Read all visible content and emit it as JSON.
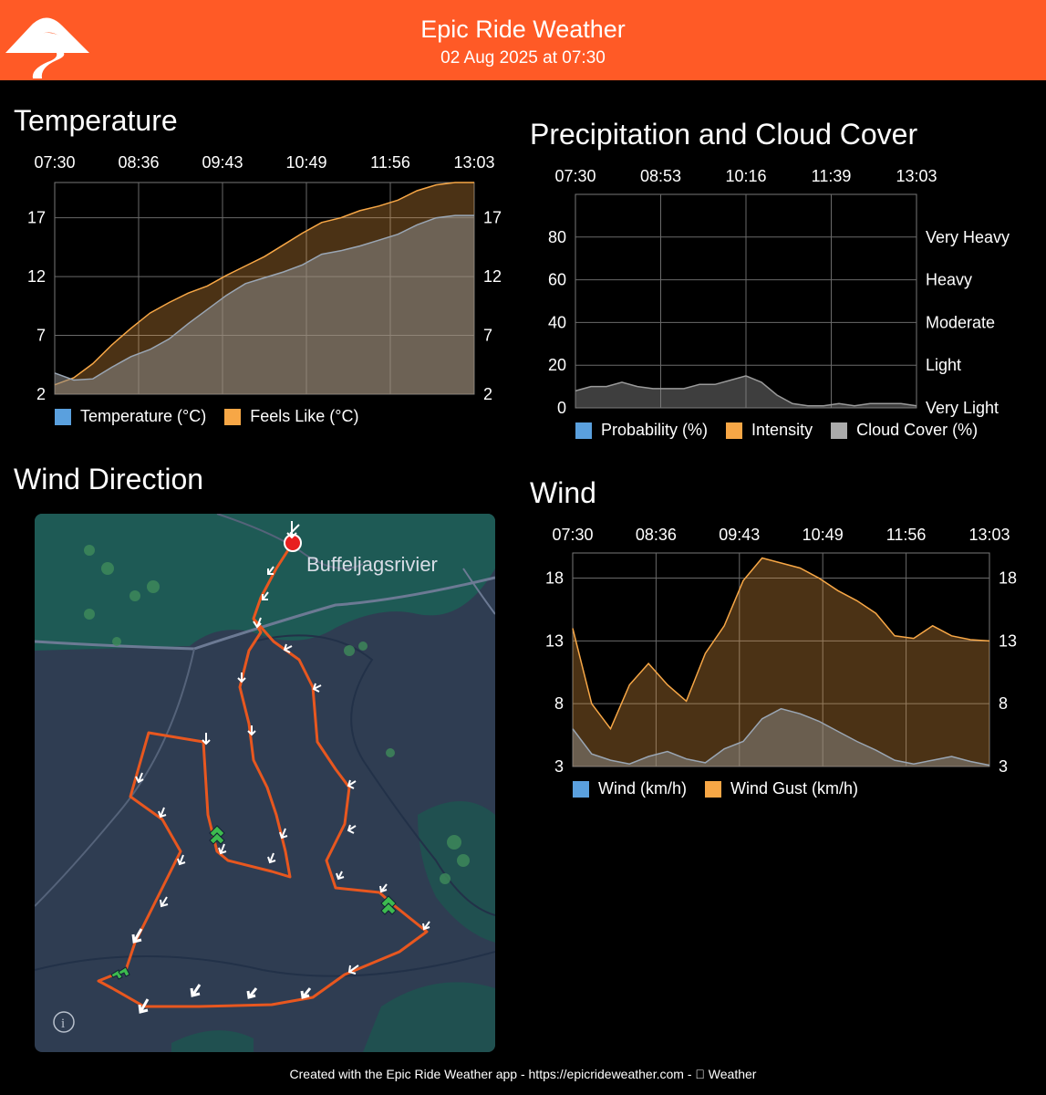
{
  "header": {
    "title": "Epic Ride Weather",
    "subtitle": "02 Aug 2025 at 07:30",
    "logo_icon": "mountain-road-logo-icon",
    "accent_color": "#ff5a26"
  },
  "temperature": {
    "title": "Temperature",
    "legend": [
      {
        "label": "Temperature (°C)",
        "color": "#5aa0de"
      },
      {
        "label": "Feels Like (°C)",
        "color": "#f7a746"
      }
    ]
  },
  "precipitation": {
    "title": "Precipitation and Cloud Cover",
    "legend": [
      {
        "label": "Probability (%)",
        "color": "#5aa0de"
      },
      {
        "label": "Intensity",
        "color": "#f7a746"
      },
      {
        "label": "Cloud Cover (%)",
        "color": "#aaaaaa"
      }
    ]
  },
  "wind_direction": {
    "title": "Wind Direction",
    "place_label": "Buffeljagsrivier",
    "info_icon": "info-icon",
    "map_icons": [
      "start-marker-icon",
      "wind-arrow-icon",
      "tailwind-chevron-icon"
    ]
  },
  "wind": {
    "title": "Wind",
    "legend": [
      {
        "label": "Wind (km/h)",
        "color": "#5aa0de"
      },
      {
        "label": "Wind Gust (km/h)",
        "color": "#f7a746"
      }
    ]
  },
  "footer": {
    "text": "Created with the Epic Ride Weather app - https://epicrideweather.com - ",
    "weather_label": "Weather",
    "apple_icon": "apple-logo-icon"
  },
  "chart_data": [
    {
      "type": "area",
      "title": "Temperature",
      "x_ticks": [
        "07:30",
        "08:36",
        "09:43",
        "10:49",
        "11:56",
        "13:03"
      ],
      "y_ticks": [
        2,
        7,
        12,
        17
      ],
      "ylim": [
        2,
        20
      ],
      "grid": true,
      "legend_position": "bottom",
      "x_hours": [
        0,
        0.25,
        0.5,
        0.75,
        1,
        1.25,
        1.5,
        1.75,
        2,
        2.25,
        2.5,
        2.75,
        3,
        3.25,
        3.5,
        3.75,
        4,
        4.25,
        4.5,
        4.75,
        5,
        5.25,
        5.5
      ],
      "series": [
        {
          "name": "Temperature (°C)",
          "values": [
            3.8,
            3.2,
            3.3,
            4.3,
            5.2,
            5.8,
            6.7,
            8.0,
            9.2,
            10.4,
            11.4,
            11.9,
            12.4,
            13.0,
            13.9,
            14.2,
            14.6,
            15.1,
            15.6,
            16.4,
            17.0,
            17.2,
            17.2
          ]
        },
        {
          "name": "Feels Like (°C)",
          "values": [
            2.8,
            3.4,
            4.6,
            6.2,
            7.6,
            8.9,
            9.8,
            10.6,
            11.2,
            12.1,
            12.9,
            13.7,
            14.7,
            15.7,
            16.6,
            17.0,
            17.6,
            18.0,
            18.5,
            19.3,
            19.8,
            20.0,
            20.0
          ]
        }
      ]
    },
    {
      "type": "area",
      "title": "Precipitation and Cloud Cover",
      "x_ticks": [
        "07:30",
        "08:53",
        "10:16",
        "11:39",
        "13:03"
      ],
      "y_ticks": [
        0,
        20,
        40,
        60,
        80
      ],
      "y_right_ticks": [
        "Very Light",
        "Light",
        "Moderate",
        "Heavy",
        "Very Heavy"
      ],
      "ylim": [
        0,
        100
      ],
      "grid": true,
      "legend_position": "bottom",
      "x_hours": [
        0,
        0.25,
        0.5,
        0.75,
        1,
        1.25,
        1.5,
        1.75,
        2,
        2.25,
        2.5,
        2.75,
        3,
        3.25,
        3.5,
        3.75,
        4,
        4.25,
        4.5,
        4.75,
        5,
        5.25,
        5.5
      ],
      "series": [
        {
          "name": "Probability (%)",
          "values": [
            0,
            0,
            0,
            0,
            0,
            0,
            0,
            0,
            0,
            0,
            0,
            0,
            0,
            0,
            0,
            0,
            0,
            0,
            0,
            0,
            0,
            0,
            0
          ]
        },
        {
          "name": "Intensity",
          "values": [
            0,
            0,
            0,
            0,
            0,
            0,
            0,
            0,
            0,
            0,
            0,
            0,
            0,
            0,
            0,
            0,
            0,
            0,
            0,
            0,
            0,
            0,
            0
          ]
        },
        {
          "name": "Cloud Cover (%)",
          "values": [
            8,
            10,
            10,
            12,
            10,
            9,
            9,
            9,
            11,
            11,
            13,
            15,
            12,
            6,
            2,
            1,
            1,
            2,
            1,
            2,
            2,
            2,
            1
          ]
        }
      ]
    },
    {
      "type": "area",
      "title": "Wind",
      "x_ticks": [
        "07:30",
        "08:36",
        "09:43",
        "10:49",
        "11:56",
        "13:03"
      ],
      "y_ticks": [
        3,
        8,
        13,
        18
      ],
      "ylim": [
        3,
        20
      ],
      "grid": true,
      "legend_position": "bottom",
      "x_hours": [
        0,
        0.25,
        0.5,
        0.75,
        1,
        1.25,
        1.5,
        1.75,
        2,
        2.25,
        2.5,
        2.75,
        3,
        3.25,
        3.5,
        3.75,
        4,
        4.25,
        4.5,
        4.75,
        5,
        5.25,
        5.5
      ],
      "series": [
        {
          "name": "Wind (km/h)",
          "values": [
            6.0,
            4.0,
            3.5,
            3.2,
            3.8,
            4.2,
            3.6,
            3.3,
            4.4,
            5.0,
            6.8,
            7.6,
            7.2,
            6.6,
            5.8,
            5.0,
            4.3,
            3.5,
            3.2,
            3.5,
            3.8,
            3.4,
            3.1
          ]
        },
        {
          "name": "Wind Gust (km/h)",
          "values": [
            14.0,
            8.0,
            6.0,
            9.5,
            11.2,
            9.5,
            8.2,
            12.0,
            14.2,
            17.8,
            19.6,
            19.2,
            18.8,
            18.0,
            17.0,
            16.2,
            15.2,
            13.4,
            13.2,
            14.2,
            13.4,
            13.1,
            13.0
          ]
        }
      ]
    }
  ]
}
